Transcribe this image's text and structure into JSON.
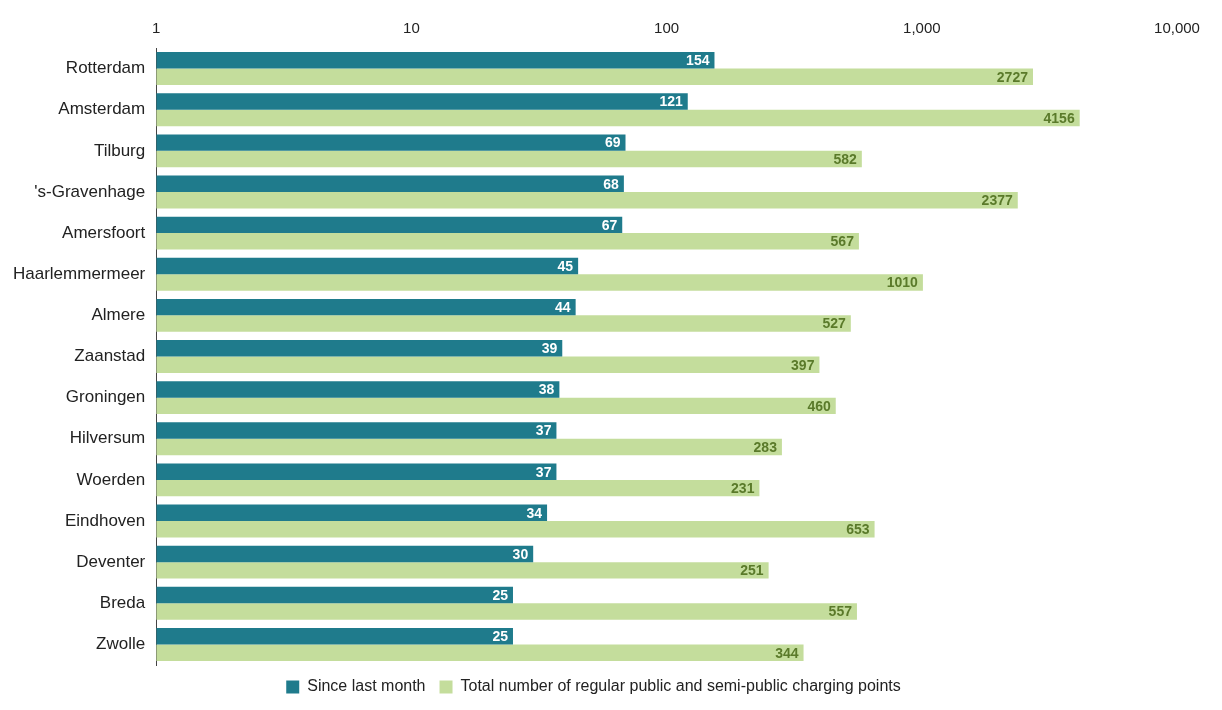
{
  "chart_data": {
    "type": "bar",
    "orientation": "horizontal",
    "categories": [
      "Rotterdam",
      "Amsterdam",
      "Tilburg",
      "'s-Gravenhage",
      "Amersfoort",
      "Haarlemmermeer",
      "Almere",
      "Zaanstad",
      "Groningen",
      "Hilversum",
      "Woerden",
      "Eindhoven",
      "Deventer",
      "Breda",
      "Zwolle"
    ],
    "series": [
      {
        "name": "Since last month",
        "color": "#1f7b8c",
        "values": [
          154,
          121,
          69,
          68,
          67,
          45,
          44,
          39,
          38,
          37,
          37,
          34,
          30,
          25,
          25
        ]
      },
      {
        "name": "Total number of regular public and semi-public charging points",
        "color": "#c4dd9c",
        "values": [
          2727,
          4156,
          582,
          2377,
          567,
          1010,
          527,
          397,
          460,
          283,
          231,
          653,
          251,
          557,
          344
        ]
      }
    ],
    "log": "x",
    "xlim": [
      1,
      10000
    ],
    "xticks": [
      1,
      10,
      100,
      {
        "value": 1000,
        "label": "1,000"
      },
      {
        "value": 10000,
        "label": "10,000"
      }
    ],
    "data_labels": true,
    "legend": "bottom",
    "grid": false
  }
}
